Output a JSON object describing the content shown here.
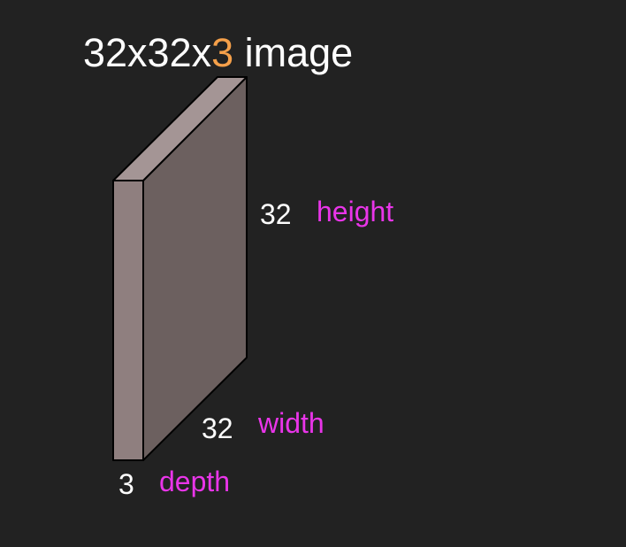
{
  "title": {
    "prefix": "32x32x",
    "highlight": "3",
    "suffix": " image"
  },
  "dimensions": {
    "height": {
      "value": "32",
      "label": "height"
    },
    "width": {
      "value": "32",
      "label": "width"
    },
    "depth": {
      "value": "3",
      "label": "depth"
    }
  },
  "colors": {
    "background": "#222222",
    "highlight": "#f5a04a",
    "label": "#e935e9",
    "box_front": "#8f7f7f",
    "box_side": "#6c605f",
    "box_top": "#a49595"
  }
}
